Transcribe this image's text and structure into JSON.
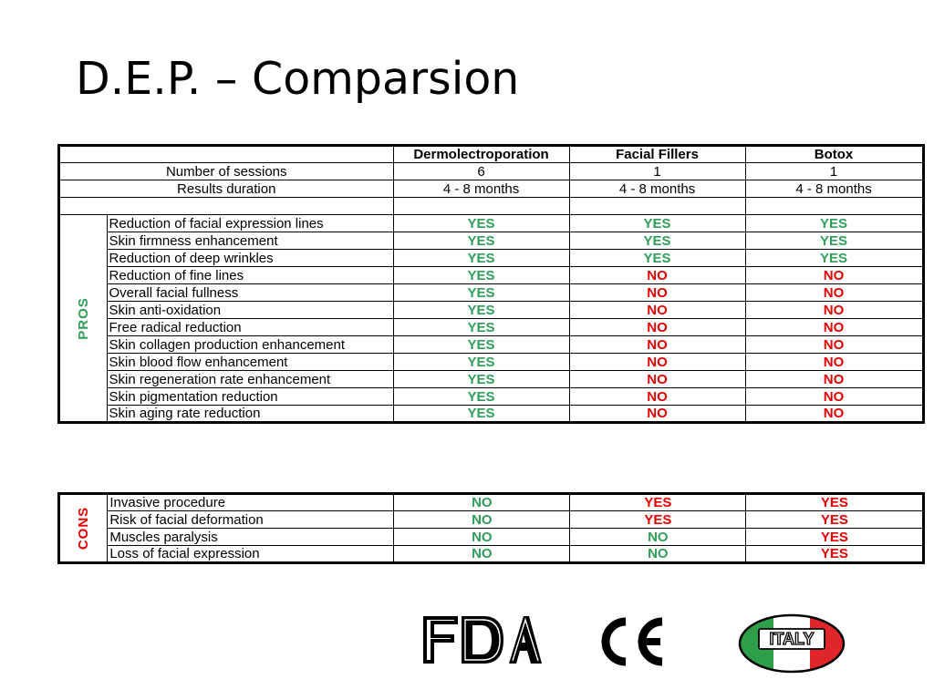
{
  "slide": {
    "title": "D.E.P. – Comparsion"
  },
  "headers": [
    "Dermolectroporation",
    "Facial Fillers",
    "Botox"
  ],
  "meta_rows": [
    {
      "label": "Number of sessions",
      "values": [
        "6",
        "1",
        "1"
      ]
    },
    {
      "label": "Results duration",
      "values": [
        "4 - 8 months",
        "4 - 8 months",
        "4 - 8 months"
      ]
    }
  ],
  "pros": {
    "side_label": "PROS",
    "rows": [
      {
        "label": "Reduction of facial expression lines",
        "values": [
          "YES",
          "YES",
          "YES"
        ]
      },
      {
        "label": "Skin firmness enhancement",
        "values": [
          "YES",
          "YES",
          "YES"
        ]
      },
      {
        "label": "Reduction of deep wrinkles",
        "values": [
          "YES",
          "YES",
          "YES"
        ]
      },
      {
        "label": "Reduction of fine lines",
        "values": [
          "YES",
          "NO",
          "NO"
        ]
      },
      {
        "label": "Overall facial fullness",
        "values": [
          "YES",
          "NO",
          "NO"
        ]
      },
      {
        "label": "Skin anti-oxidation",
        "values": [
          "YES",
          "NO",
          "NO"
        ]
      },
      {
        "label": "Free radical reduction",
        "values": [
          "YES",
          "NO",
          "NO"
        ]
      },
      {
        "label": "Skin collagen production enhancement",
        "values": [
          "YES",
          "NO",
          "NO"
        ]
      },
      {
        "label": "Skin blood flow enhancement",
        "values": [
          "YES",
          "NO",
          "NO"
        ]
      },
      {
        "label": "Skin regeneration rate enhancement",
        "values": [
          "YES",
          "NO",
          "NO"
        ]
      },
      {
        "label": "Skin pigmentation reduction",
        "values": [
          "YES",
          "NO",
          "NO"
        ]
      },
      {
        "label": "Skin aging rate reduction",
        "values": [
          "YES",
          "NO",
          "NO"
        ]
      }
    ]
  },
  "cons": {
    "side_label": "CONS",
    "rows": [
      {
        "label": "Invasive procedure",
        "values": [
          "NO",
          "YES",
          "YES"
        ]
      },
      {
        "label": "Risk of facial deformation",
        "values": [
          "NO",
          "YES",
          "YES"
        ]
      },
      {
        "label": "Muscles paralysis",
        "values": [
          "NO",
          "NO",
          "YES"
        ]
      },
      {
        "label": "Loss of facial expression",
        "values": [
          "NO",
          "NO",
          "YES"
        ]
      }
    ]
  },
  "colors": {
    "good": "#2e9e58",
    "bad": "#e60000"
  },
  "logos": {
    "fda": {
      "icon": "fda-logo",
      "text": "FDA"
    },
    "ce": {
      "icon": "ce-mark",
      "text": "CE"
    },
    "italy": {
      "icon": "italy-flag-oval",
      "text": "ITALY"
    }
  }
}
